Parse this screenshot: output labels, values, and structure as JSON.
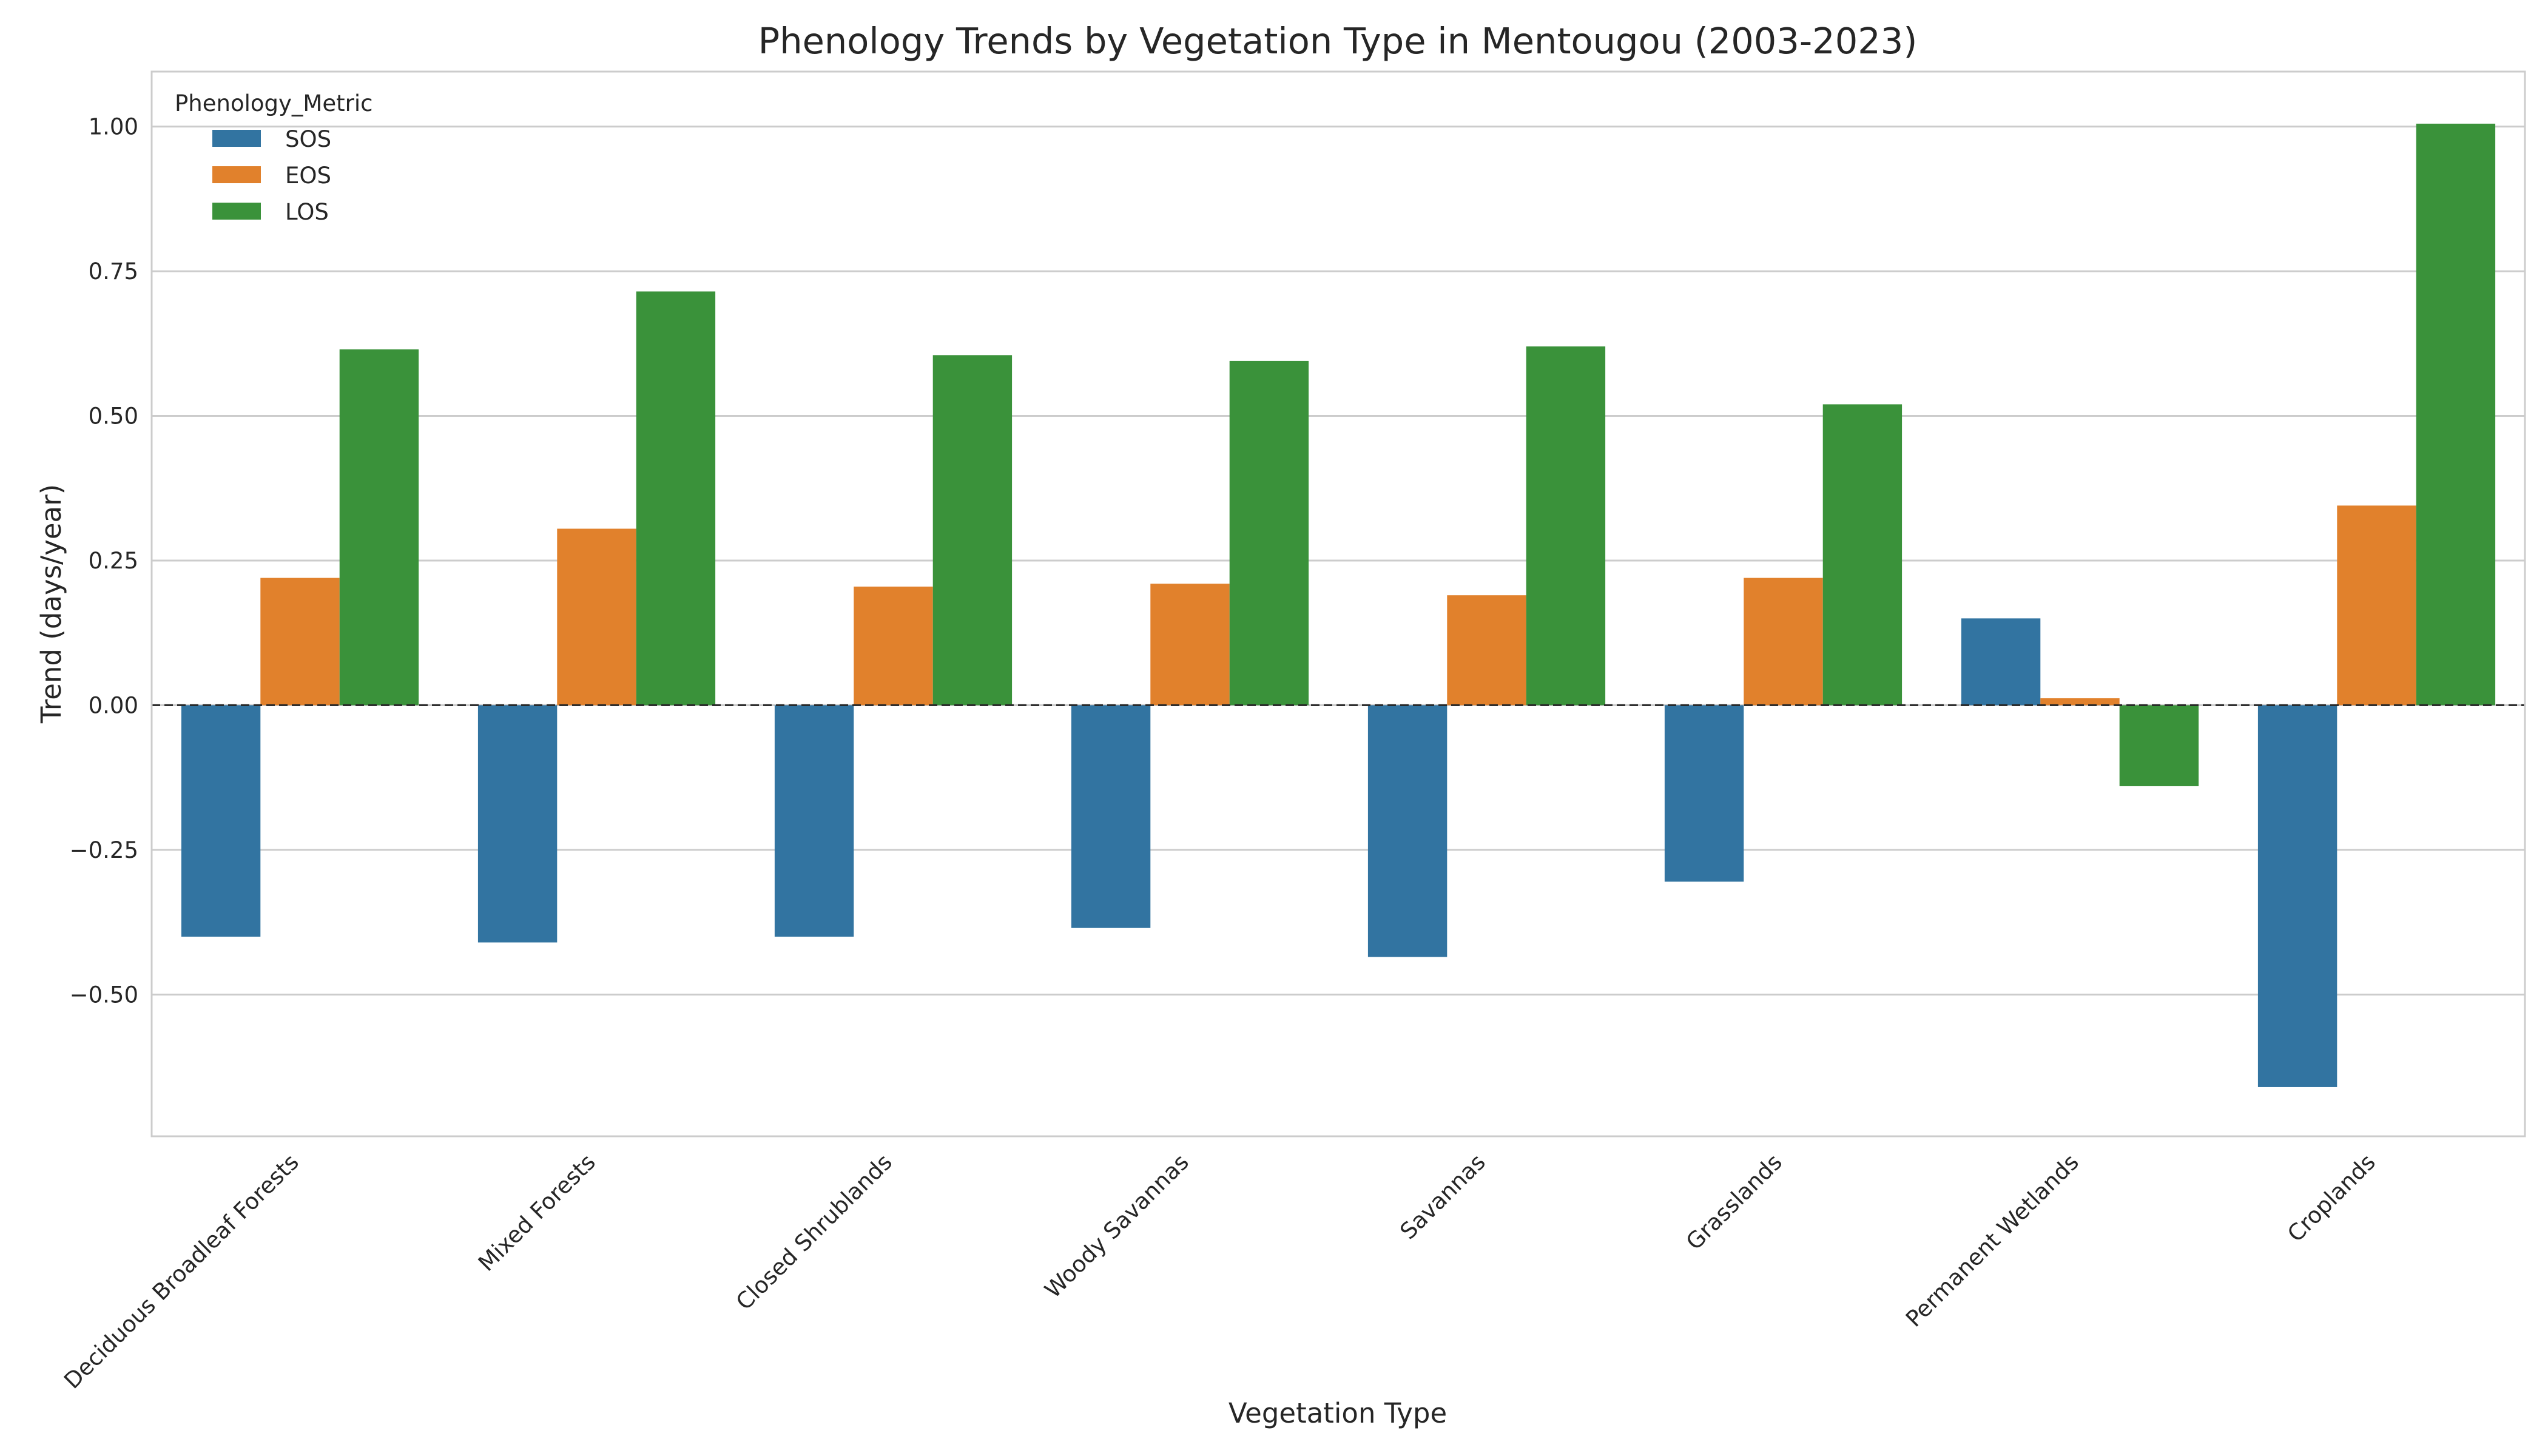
{
  "chart_data": {
    "type": "bar",
    "title": "Phenology Trends by Vegetation Type in Mentougou (2003-2023)",
    "xlabel": "Vegetation Type",
    "ylabel": "Trend (days/year)",
    "ylim": [
      -0.745,
      1.095
    ],
    "yticks": [
      -0.5,
      -0.25,
      0.0,
      0.25,
      0.5,
      0.75,
      1.0
    ],
    "ytick_labels": [
      "−0.50",
      "−0.25",
      "0.00",
      "0.25",
      "0.50",
      "0.75",
      "1.00"
    ],
    "grid": "horizontal",
    "zero_line": "dashed",
    "legend": {
      "title": "Phenology_Metric",
      "placement": "top-left"
    },
    "categories": [
      "Deciduous Broadleaf Forests",
      "Mixed Forests",
      "Closed Shrublands",
      "Woody Savannas",
      "Savannas",
      "Grasslands",
      "Permanent Wetlands",
      "Croplands"
    ],
    "series": [
      {
        "name": "SOS",
        "color": "#3274a1",
        "values": [
          -0.4,
          -0.41,
          -0.4,
          -0.385,
          -0.435,
          -0.305,
          0.15,
          -0.66
        ]
      },
      {
        "name": "EOS",
        "color": "#e1812c",
        "values": [
          0.22,
          0.305,
          0.205,
          0.21,
          0.19,
          0.22,
          0.012,
          0.345
        ]
      },
      {
        "name": "LOS",
        "color": "#3a923a",
        "values": [
          0.615,
          0.715,
          0.605,
          0.595,
          0.62,
          0.52,
          -0.14,
          1.005
        ]
      }
    ]
  }
}
